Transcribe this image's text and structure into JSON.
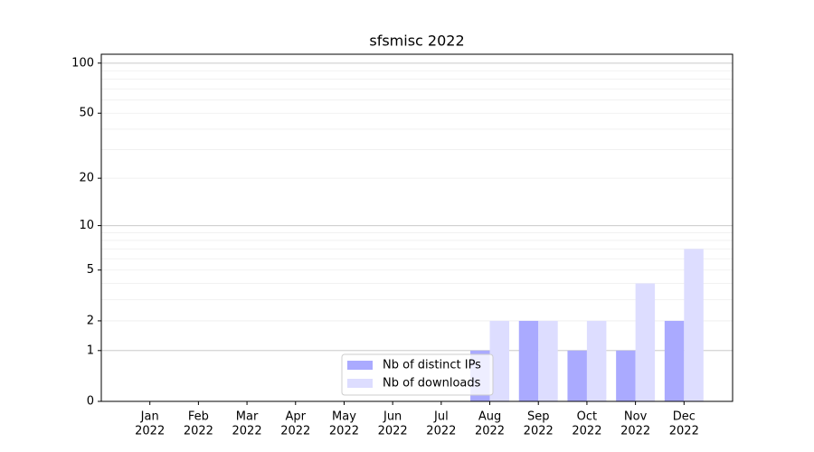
{
  "chart_data": {
    "type": "bar",
    "title": "sfsmisc 2022",
    "categories": [
      [
        "Jan",
        "2022"
      ],
      [
        "Feb",
        "2022"
      ],
      [
        "Mar",
        "2022"
      ],
      [
        "Apr",
        "2022"
      ],
      [
        "May",
        "2022"
      ],
      [
        "Jun",
        "2022"
      ],
      [
        "Jul",
        "2022"
      ],
      [
        "Aug",
        "2022"
      ],
      [
        "Sep",
        "2022"
      ],
      [
        "Oct",
        "2022"
      ],
      [
        "Nov",
        "2022"
      ],
      [
        "Dec",
        "2022"
      ]
    ],
    "series": [
      {
        "name": "Nb of distinct IPs",
        "color": "#aaaaff",
        "values": [
          0,
          0,
          0,
          0,
          0,
          0,
          0,
          1,
          2,
          1,
          1,
          2
        ]
      },
      {
        "name": "Nb of downloads",
        "color": "#ddddff",
        "values": [
          0,
          0,
          0,
          0,
          0,
          0,
          0,
          2,
          2,
          2,
          4,
          7
        ]
      }
    ],
    "yscale": "log1p",
    "ylim": [
      0,
      113
    ],
    "yticks": [
      0,
      1,
      2,
      5,
      10,
      20,
      50,
      100
    ],
    "major_grid": [
      1,
      10,
      100
    ],
    "minor_grid": [
      3,
      4,
      6,
      7,
      8,
      9,
      30,
      40,
      60,
      70,
      80,
      90
    ],
    "grid": true,
    "legend": "lower center"
  }
}
